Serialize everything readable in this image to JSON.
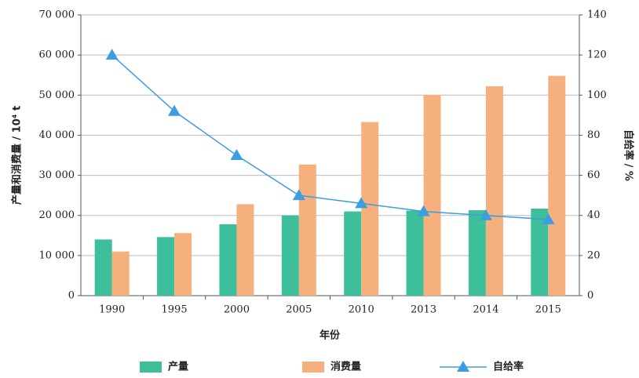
{
  "chart_data": {
    "type": "bar_line",
    "xlabel": "年份",
    "ylabel": "产量和消费量 / 10⁴ t",
    "y2label": "自给率 / %",
    "categories": [
      "1990",
      "1995",
      "2000",
      "2005",
      "2010",
      "2013",
      "2014",
      "2015"
    ],
    "series": [
      {
        "name": "产量",
        "type": "bar",
        "color": "#3dbf9c",
        "values": [
          14000,
          14600,
          17800,
          20000,
          21000,
          21200,
          21300,
          21700
        ]
      },
      {
        "name": "消费量",
        "type": "bar",
        "color": "#f6b07e",
        "values": [
          11000,
          15600,
          22800,
          32700,
          43300,
          50000,
          52200,
          54800
        ]
      },
      {
        "name": "自给率",
        "type": "line",
        "axis": "y2",
        "color": "#3a9ee0",
        "values": [
          120,
          92,
          70,
          50,
          46,
          42,
          40,
          38
        ]
      }
    ],
    "ylim": [
      0,
      70000
    ],
    "yticks": [
      0,
      {
        "value": 10000,
        "label": "10 000"
      },
      {
        "value": 20000,
        "label": "20 000"
      },
      {
        "value": 30000,
        "label": "30 000"
      },
      {
        "value": 40000,
        "label": "40 000"
      },
      {
        "value": 50000,
        "label": "50 000"
      },
      {
        "value": 60000,
        "label": "60 000"
      },
      {
        "value": 70000,
        "label": "70 000"
      }
    ],
    "y2lim": [
      0,
      140
    ],
    "y2ticks": [
      0,
      20,
      40,
      60,
      80,
      100,
      120,
      140
    ],
    "grid": true,
    "legend": "bottom"
  }
}
